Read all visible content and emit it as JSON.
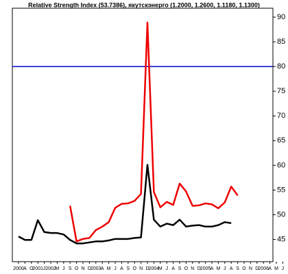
{
  "chart_data": {
    "type": "line",
    "title": "Relative Strength Index (53.7386), якутскэнерго (1.2000, 1.2600, 1.1180, 1.1300)",
    "categories": [
      "2000",
      "A",
      "O",
      "2001",
      "J",
      "2002",
      "M",
      "J",
      "S",
      "O",
      "N",
      "D",
      "2003",
      "A",
      "M",
      "J",
      "A",
      "S",
      "O",
      "N",
      "D",
      "2004",
      "M",
      "J",
      "A",
      "S",
      "O",
      "N",
      "D",
      "2005",
      "A",
      "M",
      "J",
      "A",
      "S",
      "O",
      "N",
      "D",
      "2006",
      "A",
      "M",
      "J"
    ],
    "series": [
      {
        "color": "#000000",
        "values": [
          45.6,
          44.9,
          44.9,
          48.9,
          46.5,
          46.3,
          46.3,
          46.0,
          44.9,
          44.2,
          44.2,
          44.4,
          44.6,
          44.6,
          44.8,
          45.1,
          45.1,
          45.1,
          45.3,
          45.4,
          60.1,
          49.0,
          47.6,
          48.2,
          47.9,
          49.0,
          47.6,
          47.8,
          47.9,
          47.6,
          47.6,
          47.9,
          48.5,
          48.3,
          null,
          null,
          null,
          null,
          null,
          null,
          null,
          null
        ]
      },
      {
        "color": "#ee0000",
        "values": [
          null,
          null,
          null,
          null,
          null,
          null,
          null,
          null,
          51.8,
          44.6,
          45.1,
          45.3,
          46.9,
          47.6,
          48.5,
          51.4,
          52.2,
          52.3,
          52.8,
          54.2,
          88.9,
          54.6,
          51.5,
          52.6,
          52.0,
          56.3,
          54.7,
          51.8,
          51.9,
          52.3,
          52.1,
          51.3,
          52.5,
          55.7,
          53.9,
          null,
          null,
          null,
          null,
          null,
          null,
          null
        ]
      }
    ],
    "reference_line": {
      "value": 80,
      "color": "#0000cc"
    },
    "ylim": [
      40.5,
      91.8
    ],
    "yticks": [
      45,
      50,
      55,
      60,
      65,
      70,
      75,
      80,
      85,
      90
    ],
    "y_axis_side": "right"
  }
}
